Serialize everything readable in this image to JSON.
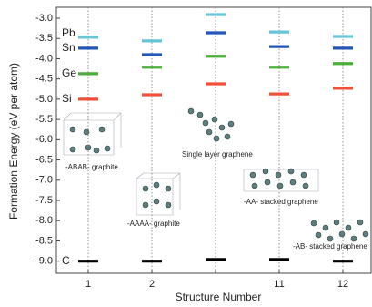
{
  "chart_data": {
    "type": "dash",
    "x_label": "Structure Number",
    "y_label": "Formation Energy (eV per atom)",
    "categories": [
      "1",
      "2",
      null,
      "11",
      "12"
    ],
    "series": [
      {
        "name": "Pb",
        "color": "#66c6d8",
        "values": [
          -3.47,
          -3.56,
          -2.91,
          -3.34,
          -3.45
        ]
      },
      {
        "name": "Sn",
        "color": "#2356b8",
        "values": [
          -3.74,
          -3.9,
          -3.36,
          -3.7,
          -3.74
        ]
      },
      {
        "name": "Ge",
        "color": "#4cae3a",
        "values": [
          -4.37,
          -4.21,
          -3.94,
          -4.21,
          -4.12
        ]
      },
      {
        "name": "Si",
        "color": "#f0503a",
        "values": [
          -5.0,
          -4.89,
          -4.62,
          -4.87,
          -4.73
        ]
      },
      {
        "name": "C",
        "color": "#000000",
        "values": [
          -9.0,
          -9.0,
          -8.96,
          -8.96,
          -9.0
        ]
      }
    ],
    "ylim": [
      -9.3,
      -2.73
    ],
    "yticks": [
      {
        "value": -3,
        "label": "-3.0"
      },
      -3.5,
      {
        "value": -4,
        "label": "-4.0"
      },
      -4.5,
      {
        "value": -5,
        "label": "-5.0"
      },
      -5.5,
      {
        "value": -6,
        "label": "-6.0"
      },
      -6.5,
      {
        "value": -7,
        "label": "-7.0"
      },
      -7.5,
      {
        "value": -8,
        "label": "-8.0"
      },
      -8.5,
      {
        "value": -9,
        "label": "-9.0"
      }
    ],
    "annotations": [
      "-ABAB- graphite",
      "-AAAA- graphite",
      "Single layer graphene",
      "-AA- stacked graphene",
      "-AB- stacked graphene"
    ]
  }
}
